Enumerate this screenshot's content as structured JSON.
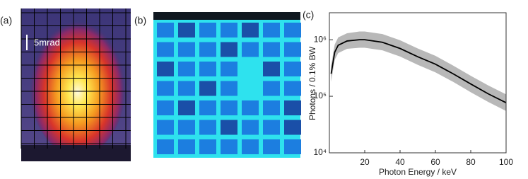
{
  "panels": {
    "a": {
      "label": "(a)",
      "scale": "5mrad"
    },
    "b": {
      "label": "(b)"
    },
    "c": {
      "label": "(c)"
    }
  },
  "chart_data": {
    "type": "line",
    "xlabel": "Photon Energy / keV",
    "ylabel": "Photons / 0.1% BW",
    "x": [
      1,
      3,
      5,
      10,
      17,
      20,
      30,
      40,
      50,
      60,
      70,
      80,
      90,
      100
    ],
    "values": [
      250000,
      600000,
      800000,
      950000,
      1000000,
      1000000,
      900000,
      700000,
      500000,
      370000,
      250000,
      165000,
      110000,
      77000
    ],
    "color": "#000000",
    "band": {
      "color": "#b8b8b8",
      "upper": [
        350000,
        820000,
        1100000,
        1300000,
        1400000,
        1400000,
        1260000,
        980000,
        700000,
        520000,
        350000,
        230000,
        155000,
        108000
      ],
      "lower": [
        180000,
        440000,
        580000,
        690000,
        720000,
        720000,
        650000,
        505000,
        360000,
        265000,
        180000,
        118000,
        79000,
        55000
      ]
    },
    "xlim": [
      0,
      100
    ],
    "xticks": [
      20,
      40,
      60,
      80,
      100
    ],
    "ylim": [
      10000,
      3000000
    ],
    "log_y": true,
    "yticks": [
      {
        "value": 10000,
        "label": "10⁴"
      },
      {
        "value": 100000,
        "label": "10⁵"
      },
      {
        "value": 1000000,
        "label": "10⁶"
      }
    ]
  }
}
